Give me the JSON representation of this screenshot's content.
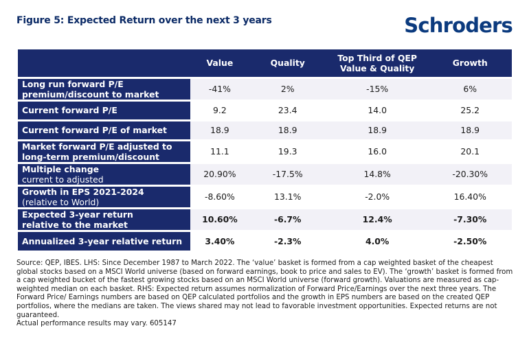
{
  "title": "Figure 5: Expected Return over the next 3 years",
  "logo_text": "Schroders",
  "colors": {
    "header_bg": "#1a2a6c",
    "row_alt": "#f2f1f7",
    "title": "#0b2a66"
  },
  "table": {
    "columns": [
      "Value",
      "Quality",
      "Top Third of QEP\nValue & Quality",
      "Growth"
    ],
    "rows": [
      {
        "label": "Long run forward P/E\npremium/discount to market",
        "values": [
          "-41%",
          "2%",
          "-15%",
          "6%"
        ]
      },
      {
        "label": "Current forward P/E",
        "values": [
          "9.2",
          "23.4",
          "14.0",
          "25.2"
        ]
      },
      {
        "label": "Current forward P/E of market",
        "values": [
          "18.9",
          "18.9",
          "18.9",
          "18.9"
        ]
      },
      {
        "label": "Market forward P/E adjusted to\nlong-term premium/discount",
        "values": [
          "11.1",
          "19.3",
          "16.0",
          "20.1"
        ]
      },
      {
        "label": "Multiple change",
        "sub": "current to adjusted",
        "values": [
          "20.90%",
          "-17.5%",
          "14.8%",
          "-20.30%"
        ]
      },
      {
        "label": "Growth in EPS 2021-2024",
        "sub": "(relative to World)",
        "values": [
          "-8.60%",
          "13.1%",
          "-2.0%",
          "16.40%"
        ]
      },
      {
        "label": "Expected 3-year return\nrelative to the market",
        "values": [
          "10.60%",
          "-6.7%",
          "12.4%",
          "-7.30%"
        ]
      },
      {
        "label": "Annualized 3-year relative return",
        "values": [
          "3.40%",
          "-2.3%",
          "4.0%",
          "-2.50%"
        ]
      }
    ]
  },
  "footnote": "Source: QEP, IBES. LHS: Since December 1987 to March 2022. The ‘value’ basket is formed from a cap weighted basket of the cheapest global stocks based on a MSCI World universe (based on forward earnings, book to price and sales to EV). The ‘growth’ basket is formed from a cap weighted bucket of the fastest growing stocks based on an MSCI World universe (forward growth). Valuations are measured as cap-weighted median on each basket. RHS: Expected return assumes normalization of Forward Price/Earnings over the next three years. The Forward Price/ Earnings numbers are based on QEP calculated portfolios and the growth in EPS numbers are based on the created QEP portfolios, where the medians are taken. The views shared may not lead to favorable investment opportunities. Expected returns are not guaranteed.",
  "footnote_last": "Actual performance results may vary. 605147"
}
